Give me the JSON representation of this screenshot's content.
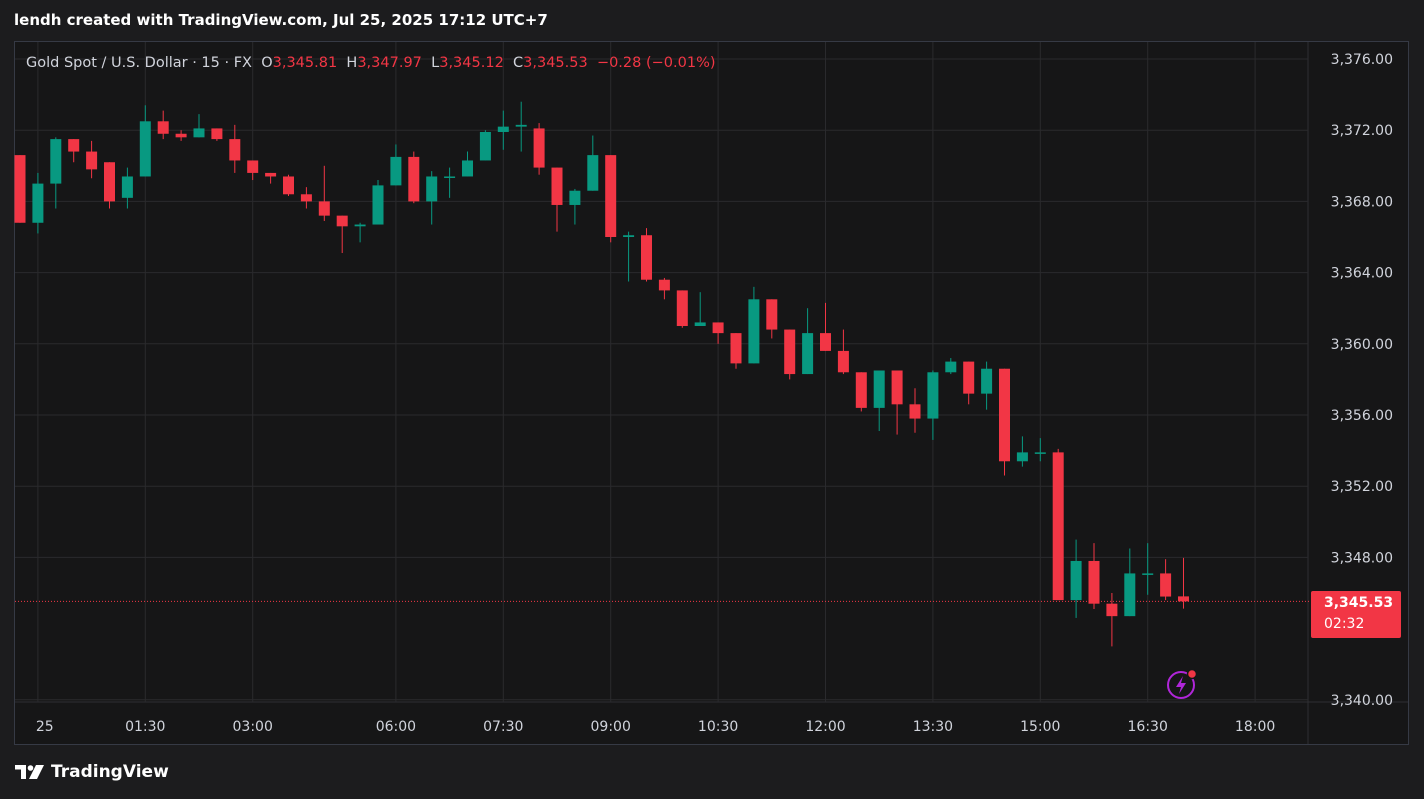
{
  "caption": "lendh created with TradingView.com, Jul 25, 2025 17:12 UTC+7",
  "legend": {
    "symbol": "Gold Spot / U.S. Dollar · 15 · FX",
    "open_label": "O",
    "open": "3,345.81",
    "high_label": "H",
    "high": "3,347.97",
    "low_label": "L",
    "low": "3,345.12",
    "close_label": "C",
    "close": "3,345.53",
    "change": "−0.28 (−0.01%)"
  },
  "price_tag": {
    "price": "3,345.53",
    "countdown": "02:32"
  },
  "footer": {
    "brand": "TradingView"
  },
  "colors": {
    "up": "#089981",
    "down": "#f23645",
    "grid": "#2a2a2d",
    "axis_text": "#d1d4dc",
    "background": "#161617"
  },
  "icons": {
    "alert": "lightning-alert-icon",
    "logo": "tradingview-logo-icon"
  },
  "chart_data": {
    "type": "candlestick",
    "title": "Gold Spot / U.S. Dollar",
    "interval": "15",
    "y_ticks": [
      "3,376.00",
      "3,372.00",
      "3,368.00",
      "3,364.00",
      "3,360.00",
      "3,356.00",
      "3,352.00",
      "3,348.00",
      "3,340.00"
    ],
    "y_tick_values": [
      3376,
      3372,
      3368,
      3364,
      3360,
      3356,
      3352,
      3348,
      3340
    ],
    "x_ticks": [
      "25",
      "01:30",
      "03:00",
      "06:00",
      "07:30",
      "09:00",
      "10:30",
      "12:00",
      "13:30",
      "15:00",
      "16:30",
      "18:00"
    ],
    "x_tick_index": [
      1,
      7,
      13,
      21,
      27,
      33,
      39,
      45,
      51,
      57,
      63,
      69
    ],
    "last_price": 3345.53,
    "candles": [
      {
        "o": 3370.6,
        "h": 3370.6,
        "l": 3366.8,
        "c": 3366.8
      },
      {
        "o": 3366.8,
        "h": 3369.6,
        "l": 3366.2,
        "c": 3369.0
      },
      {
        "o": 3369.0,
        "h": 3371.6,
        "l": 3367.6,
        "c": 3371.5
      },
      {
        "o": 3371.5,
        "h": 3371.5,
        "l": 3370.2,
        "c": 3370.8
      },
      {
        "o": 3370.8,
        "h": 3371.4,
        "l": 3369.3,
        "c": 3369.8
      },
      {
        "o": 3370.2,
        "h": 3370.2,
        "l": 3367.6,
        "c": 3368.0
      },
      {
        "o": 3368.2,
        "h": 3369.9,
        "l": 3367.6,
        "c": 3369.4
      },
      {
        "o": 3369.4,
        "h": 3373.4,
        "l": 3369.4,
        "c": 3372.5
      },
      {
        "o": 3372.5,
        "h": 3373.1,
        "l": 3371.5,
        "c": 3371.8
      },
      {
        "o": 3371.8,
        "h": 3372.0,
        "l": 3371.4,
        "c": 3371.6
      },
      {
        "o": 3371.6,
        "h": 3372.9,
        "l": 3371.6,
        "c": 3372.1
      },
      {
        "o": 3372.1,
        "h": 3372.1,
        "l": 3371.4,
        "c": 3371.5
      },
      {
        "o": 3371.5,
        "h": 3372.3,
        "l": 3369.6,
        "c": 3370.3
      },
      {
        "o": 3370.3,
        "h": 3370.3,
        "l": 3369.2,
        "c": 3369.6
      },
      {
        "o": 3369.6,
        "h": 3369.6,
        "l": 3369.0,
        "c": 3369.4
      },
      {
        "o": 3369.4,
        "h": 3369.5,
        "l": 3368.3,
        "c": 3368.4
      },
      {
        "o": 3368.4,
        "h": 3368.8,
        "l": 3367.6,
        "c": 3368.0
      },
      {
        "o": 3368.0,
        "h": 3370.0,
        "l": 3366.9,
        "c": 3367.2
      },
      {
        "o": 3367.2,
        "h": 3367.2,
        "l": 3365.1,
        "c": 3366.6
      },
      {
        "o": 3366.6,
        "h": 3366.8,
        "l": 3365.7,
        "c": 3366.7
      },
      {
        "o": 3366.7,
        "h": 3369.2,
        "l": 3366.7,
        "c": 3368.9
      },
      {
        "o": 3368.9,
        "h": 3371.2,
        "l": 3368.9,
        "c": 3370.5
      },
      {
        "o": 3370.5,
        "h": 3370.8,
        "l": 3367.9,
        "c": 3368.0
      },
      {
        "o": 3368.0,
        "h": 3369.7,
        "l": 3366.7,
        "c": 3369.4
      },
      {
        "o": 3369.4,
        "h": 3369.9,
        "l": 3368.2,
        "c": 3369.4
      },
      {
        "o": 3369.4,
        "h": 3370.8,
        "l": 3369.4,
        "c": 3370.3
      },
      {
        "o": 3370.3,
        "h": 3372.0,
        "l": 3370.3,
        "c": 3371.9
      },
      {
        "o": 3371.9,
        "h": 3373.1,
        "l": 3370.9,
        "c": 3372.2
      },
      {
        "o": 3372.2,
        "h": 3373.6,
        "l": 3370.8,
        "c": 3372.3
      },
      {
        "o": 3372.1,
        "h": 3372.4,
        "l": 3369.5,
        "c": 3369.9
      },
      {
        "o": 3369.9,
        "h": 3369.9,
        "l": 3366.3,
        "c": 3367.8
      },
      {
        "o": 3367.8,
        "h": 3368.7,
        "l": 3366.7,
        "c": 3368.6
      },
      {
        "o": 3368.6,
        "h": 3371.7,
        "l": 3368.6,
        "c": 3370.6
      },
      {
        "o": 3370.6,
        "h": 3370.6,
        "l": 3365.7,
        "c": 3366.0
      },
      {
        "o": 3366.0,
        "h": 3366.3,
        "l": 3363.5,
        "c": 3366.1
      },
      {
        "o": 3366.1,
        "h": 3366.5,
        "l": 3363.5,
        "c": 3363.6
      },
      {
        "o": 3363.6,
        "h": 3363.7,
        "l": 3362.5,
        "c": 3363.0
      },
      {
        "o": 3363.0,
        "h": 3363.0,
        "l": 3360.9,
        "c": 3361.0
      },
      {
        "o": 3361.0,
        "h": 3362.9,
        "l": 3361.0,
        "c": 3361.2
      },
      {
        "o": 3361.2,
        "h": 3361.2,
        "l": 3360.0,
        "c": 3360.6
      },
      {
        "o": 3360.6,
        "h": 3360.6,
        "l": 3358.6,
        "c": 3358.9
      },
      {
        "o": 3358.9,
        "h": 3363.2,
        "l": 3358.9,
        "c": 3362.5
      },
      {
        "o": 3362.5,
        "h": 3362.5,
        "l": 3360.3,
        "c": 3360.8
      },
      {
        "o": 3360.8,
        "h": 3360.8,
        "l": 3358.0,
        "c": 3358.3
      },
      {
        "o": 3358.3,
        "h": 3362.0,
        "l": 3358.3,
        "c": 3360.6
      },
      {
        "o": 3360.6,
        "h": 3362.3,
        "l": 3359.6,
        "c": 3359.6
      },
      {
        "o": 3359.6,
        "h": 3360.8,
        "l": 3358.3,
        "c": 3358.4
      },
      {
        "o": 3358.4,
        "h": 3358.4,
        "l": 3356.2,
        "c": 3356.4
      },
      {
        "o": 3356.4,
        "h": 3358.5,
        "l": 3355.1,
        "c": 3358.5
      },
      {
        "o": 3358.5,
        "h": 3358.5,
        "l": 3354.9,
        "c": 3356.6
      },
      {
        "o": 3356.6,
        "h": 3357.5,
        "l": 3355.0,
        "c": 3355.8
      },
      {
        "o": 3355.8,
        "h": 3358.5,
        "l": 3354.6,
        "c": 3358.4
      },
      {
        "o": 3358.4,
        "h": 3359.2,
        "l": 3358.3,
        "c": 3359.0
      },
      {
        "o": 3359.0,
        "h": 3359.0,
        "l": 3356.6,
        "c": 3357.2
      },
      {
        "o": 3357.2,
        "h": 3359.0,
        "l": 3356.3,
        "c": 3358.6
      },
      {
        "o": 3358.6,
        "h": 3358.6,
        "l": 3352.6,
        "c": 3353.4
      },
      {
        "o": 3353.4,
        "h": 3354.8,
        "l": 3353.1,
        "c": 3353.9
      },
      {
        "o": 3353.9,
        "h": 3354.7,
        "l": 3353.4,
        "c": 3353.9
      },
      {
        "o": 3353.9,
        "h": 3354.1,
        "l": 3345.6,
        "c": 3345.6
      },
      {
        "o": 3345.6,
        "h": 3349.0,
        "l": 3344.6,
        "c": 3347.8
      },
      {
        "o": 3347.8,
        "h": 3348.8,
        "l": 3345.1,
        "c": 3345.4
      },
      {
        "o": 3345.4,
        "h": 3346.0,
        "l": 3343.0,
        "c": 3344.7
      },
      {
        "o": 3344.7,
        "h": 3348.5,
        "l": 3344.7,
        "c": 3347.1
      },
      {
        "o": 3347.1,
        "h": 3348.8,
        "l": 3345.9,
        "c": 3347.1
      },
      {
        "o": 3347.1,
        "h": 3347.9,
        "l": 3345.6,
        "c": 3345.8
      },
      {
        "o": 3345.81,
        "h": 3347.97,
        "l": 3345.12,
        "c": 3345.53
      }
    ]
  }
}
